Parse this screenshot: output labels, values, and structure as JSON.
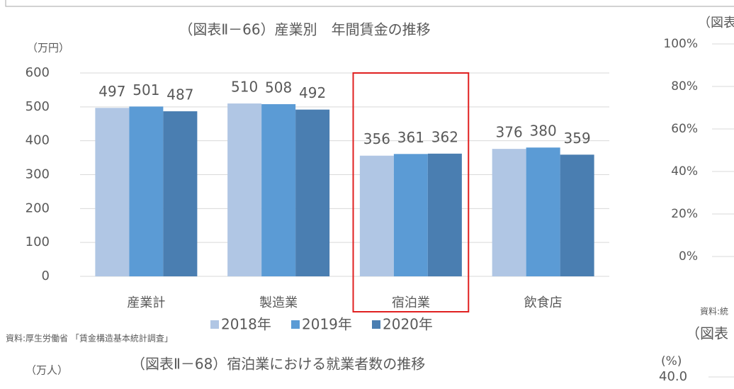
{
  "chart_data": {
    "type": "bar",
    "title": "（図表Ⅱ－66）産業別　年間賃金の推移",
    "y_unit": "（万円）",
    "categories": [
      "産業計",
      "製造業",
      "宿泊業",
      "飲食店"
    ],
    "series": [
      {
        "name": "2018年",
        "color": "#b0c6e4",
        "values": [
          497,
          510,
          356,
          376
        ]
      },
      {
        "name": "2019年",
        "color": "#5b9bd5",
        "values": [
          501,
          508,
          361,
          380
        ]
      },
      {
        "name": "2020年",
        "color": "#4a7eb1",
        "values": [
          487,
          492,
          362,
          359
        ]
      }
    ],
    "ylim": [
      0,
      600
    ],
    "yticks": [
      0,
      100,
      200,
      300,
      400,
      500,
      600
    ],
    "grid": true,
    "legend": "bottom",
    "highlight_index": 2,
    "highlight_color": "#e02020"
  },
  "source": "資料:厚生労働省 「賃金構造基本統計調査」",
  "next_chart": {
    "title": "（図表Ⅱ－68）宿泊業における就業者数の推移",
    "unit": "（万人）"
  },
  "right_panel": {
    "title_fragment": "（図表",
    "tick_labels": [
      "100%",
      "80%",
      "60%",
      "40%",
      "20%",
      "0%"
    ],
    "source_fragment": "資料:統",
    "next_title_fragment": "（図表",
    "next_unit": "(%)",
    "next_tick": "40.0"
  }
}
